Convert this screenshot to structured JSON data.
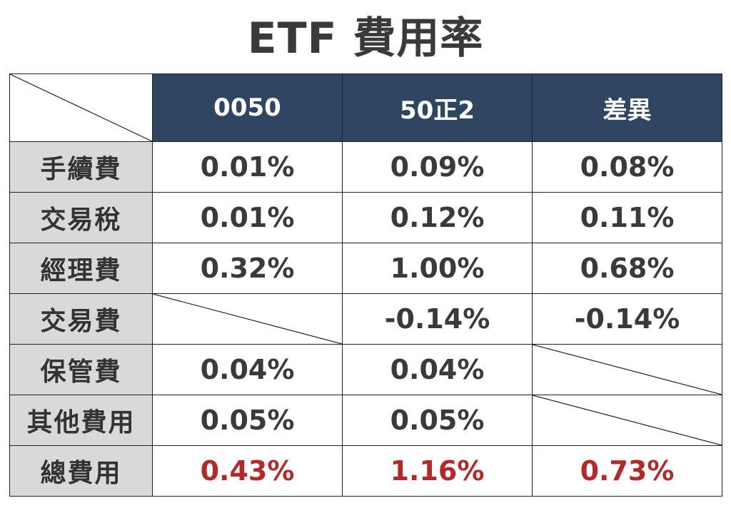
{
  "title": "ETF 費用率",
  "table": {
    "columns": [
      "0050",
      "50正2",
      "差異"
    ],
    "rows": [
      {
        "label": "手續費",
        "values": [
          "0.01%",
          "0.09%",
          "0.08%"
        ]
      },
      {
        "label": "交易稅",
        "values": [
          "0.01%",
          "0.12%",
          "0.11%"
        ]
      },
      {
        "label": "經理費",
        "values": [
          "0.32%",
          "1.00%",
          "0.68%"
        ]
      },
      {
        "label": "交易費",
        "values": [
          "",
          "-0.14%",
          "-0.14%"
        ]
      },
      {
        "label": "保管費",
        "values": [
          "0.04%",
          "0.04%",
          ""
        ]
      },
      {
        "label": "其他費用",
        "values": [
          "0.05%",
          "0.05%",
          ""
        ]
      },
      {
        "label": "總費用",
        "values": [
          "0.43%",
          "1.16%",
          "0.73%"
        ]
      }
    ]
  },
  "colors": {
    "header_bg": "#2f4662",
    "label_bg": "#d9d9d9",
    "total_text": "#b32a2a"
  }
}
